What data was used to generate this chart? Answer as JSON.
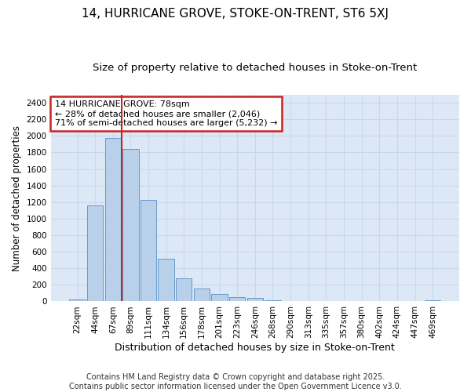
{
  "title": "14, HURRICANE GROVE, STOKE-ON-TRENT, ST6 5XJ",
  "subtitle": "Size of property relative to detached houses in Stoke-on-Trent",
  "xlabel": "Distribution of detached houses by size in Stoke-on-Trent",
  "ylabel": "Number of detached properties",
  "bar_labels": [
    "22sqm",
    "44sqm",
    "67sqm",
    "89sqm",
    "111sqm",
    "134sqm",
    "156sqm",
    "178sqm",
    "201sqm",
    "223sqm",
    "246sqm",
    "268sqm",
    "290sqm",
    "313sqm",
    "335sqm",
    "357sqm",
    "380sqm",
    "402sqm",
    "424sqm",
    "447sqm",
    "469sqm"
  ],
  "bar_values": [
    25,
    1160,
    1975,
    1845,
    1230,
    520,
    275,
    155,
    90,
    55,
    45,
    15,
    5,
    0,
    5,
    0,
    0,
    0,
    0,
    0,
    10
  ],
  "bar_color": "#b8d0ea",
  "bar_edge_color": "#6699cc",
  "vline_color": "#cc2222",
  "annotation_box_text": "14 HURRICANE GROVE: 78sqm\n← 28% of detached houses are smaller (2,046)\n71% of semi-detached houses are larger (5,232) →",
  "annotation_box_color": "#ffffff",
  "annotation_box_edge_color": "#cc2222",
  "grid_color": "#c8d8ec",
  "plot_bg_color": "#dce8f5",
  "fig_bg_color": "#ffffff",
  "ylim": [
    0,
    2500
  ],
  "yticks": [
    0,
    200,
    400,
    600,
    800,
    1000,
    1200,
    1400,
    1600,
    1800,
    2000,
    2200,
    2400
  ],
  "footer": "Contains HM Land Registry data © Crown copyright and database right 2025.\nContains public sector information licensed under the Open Government Licence v3.0.",
  "title_fontsize": 11,
  "subtitle_fontsize": 9.5,
  "xlabel_fontsize": 9,
  "ylabel_fontsize": 8.5,
  "tick_fontsize": 7.5,
  "footer_fontsize": 7,
  "annot_fontsize": 8
}
